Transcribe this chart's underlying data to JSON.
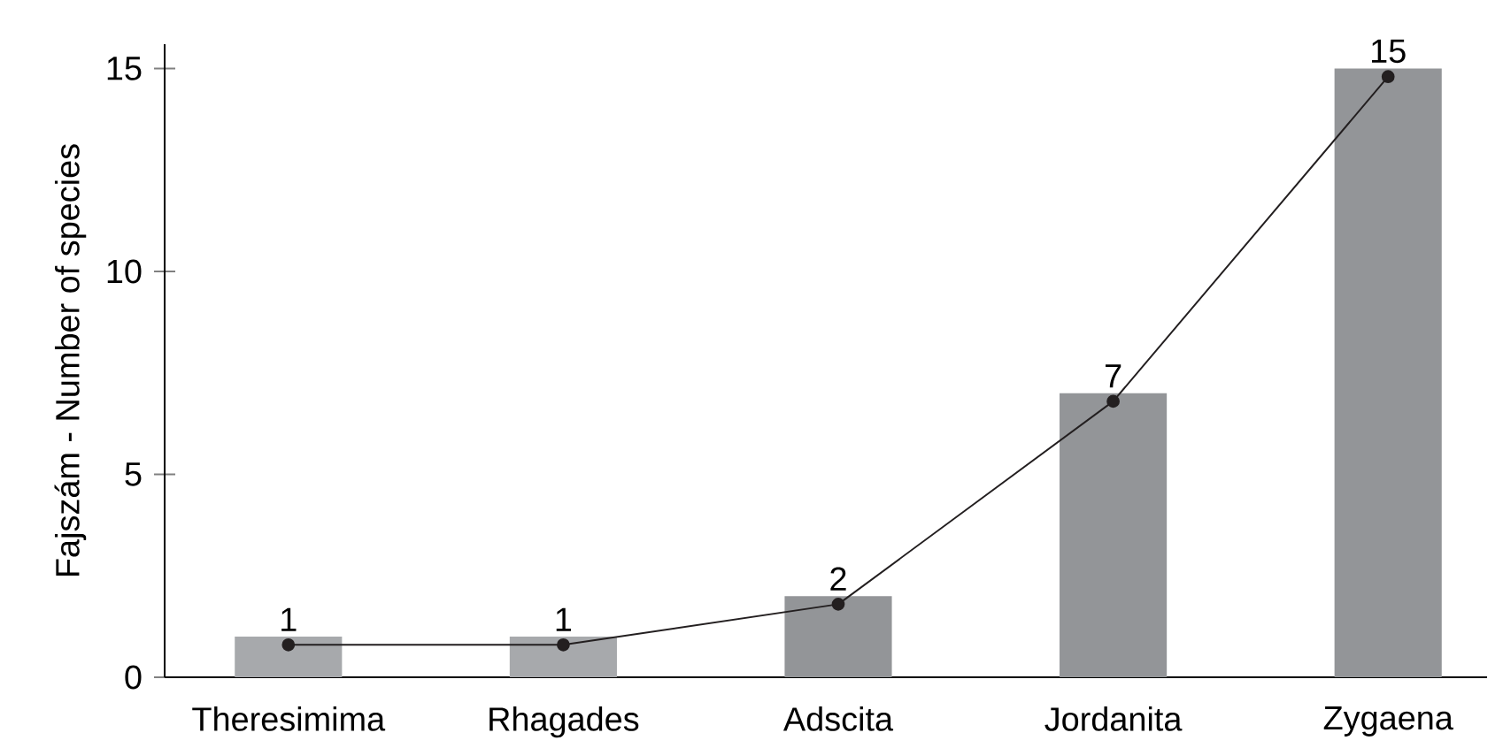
{
  "chart_data": {
    "type": "bar",
    "ylabel": "Fajszám - Number of species",
    "categories": [
      "Theresimima",
      "Rhagades",
      "Adscita",
      "Jordanita",
      "Zygaena"
    ],
    "series": [
      {
        "colors": [
          "#a7a9ac",
          "#a7a9ac",
          "#939598",
          "#939598",
          "#939598"
        ],
        "values": [
          1,
          1,
          2,
          7,
          15
        ],
        "value_labels": [
          "1",
          "1",
          "2",
          "7",
          "15"
        ]
      },
      {
        "type": "line",
        "color": "#231f20",
        "marker": "circle",
        "line_style": "solid",
        "values": [
          0.8,
          0.8,
          1.8,
          6.8,
          14.8
        ]
      }
    ],
    "ylim": [
      0,
      15.6
    ],
    "yticks": [
      0,
      5,
      10,
      15
    ],
    "grid": false
  }
}
